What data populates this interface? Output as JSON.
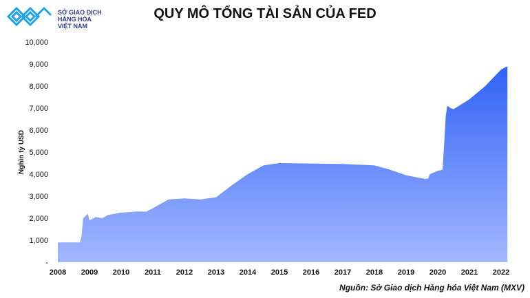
{
  "logo": {
    "line1": "SỞ GIAO DỊCH",
    "line2": "HÀNG HÓA",
    "line3": "VIỆT NAM"
  },
  "source": "Nguồn: Sở Giao dịch Hàng hóa Việt Nam (MXV)",
  "chart_data": {
    "type": "area",
    "title": "QUY MÔ TỔNG TÀI SẢN CỦA FED",
    "ylabel": "Nghìn tỷ USD",
    "xlabel": "",
    "ylim": [
      0,
      10000
    ],
    "xlim": [
      2008,
      2022.2
    ],
    "yticks": [
      0,
      1000,
      2000,
      3000,
      4000,
      5000,
      6000,
      7000,
      8000,
      9000,
      10000
    ],
    "ytick_labels": [
      "-",
      "1,000",
      "2,000",
      "3,000",
      "4,000",
      "5,000",
      "6,000",
      "7,000",
      "8,000",
      "9,000",
      "10,000"
    ],
    "xticks": [
      "2008",
      "2009",
      "2010",
      "2011",
      "2012",
      "2013",
      "2014",
      "2015",
      "2016",
      "2017",
      "2018",
      "2019",
      "2020",
      "2021",
      "2022"
    ],
    "grid": false,
    "colors": {
      "top": "#2f62f5",
      "bottom": "#a3b8ff"
    },
    "x": [
      2008.0,
      2008.7,
      2008.75,
      2008.8,
      2008.95,
      2009.0,
      2009.2,
      2009.4,
      2009.6,
      2010.0,
      2010.5,
      2010.8,
      2011.0,
      2011.5,
      2012.0,
      2012.5,
      2013.0,
      2013.5,
      2014.0,
      2014.5,
      2015.0,
      2016.0,
      2017.0,
      2018.0,
      2018.5,
      2019.0,
      2019.6,
      2019.7,
      2019.75,
      2020.0,
      2020.15,
      2020.2,
      2020.25,
      2020.3,
      2020.4,
      2020.5,
      2021.0,
      2021.5,
      2022.0,
      2022.2
    ],
    "y": [
      900,
      900,
      1200,
      2000,
      2200,
      1900,
      2050,
      2000,
      2150,
      2250,
      2300,
      2300,
      2450,
      2850,
      2900,
      2850,
      2950,
      3500,
      4000,
      4400,
      4500,
      4480,
      4460,
      4400,
      4200,
      3950,
      3780,
      3800,
      4000,
      4150,
      4200,
      5300,
      6600,
      7100,
      7000,
      6950,
      7400,
      8000,
      8750,
      8900
    ]
  }
}
